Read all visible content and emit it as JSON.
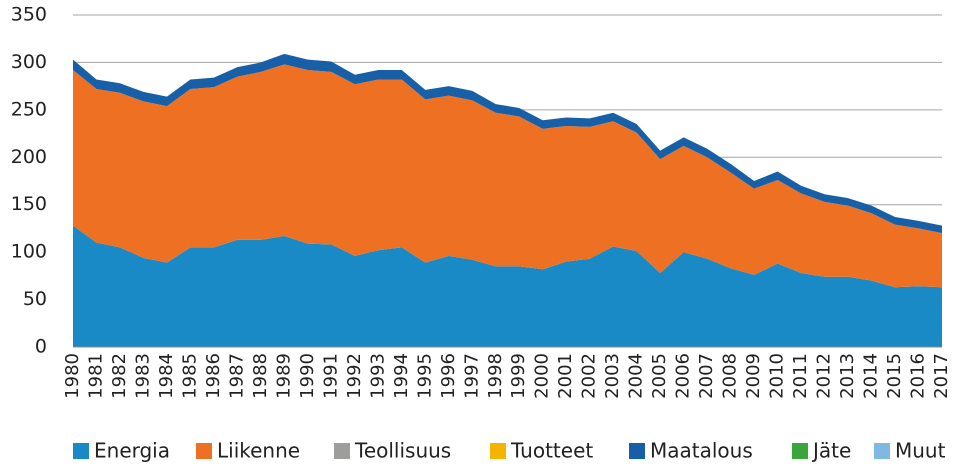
{
  "chart_data": {
    "type": "area",
    "categories": [
      "1980",
      "1981",
      "1982",
      "1983",
      "1984",
      "1985",
      "1986",
      "1987",
      "1988",
      "1989",
      "1990",
      "1991",
      "1992",
      "1993",
      "1994",
      "1995",
      "1996",
      "1997",
      "1998",
      "1999",
      "2000",
      "2001",
      "2002",
      "2003",
      "2004",
      "2005",
      "2006",
      "2007",
      "2008",
      "2009",
      "2010",
      "2011",
      "2012",
      "2013",
      "2014",
      "2015",
      "2016",
      "2017"
    ],
    "stacked": true,
    "series": [
      {
        "name": "Energia",
        "color": "#1a8ac6",
        "values": [
          128,
          110,
          105,
          94,
          89,
          105,
          105,
          113,
          113,
          117,
          109,
          108,
          96,
          102,
          105,
          89,
          96,
          92,
          85,
          85,
          82,
          90,
          93,
          106,
          101,
          78,
          100,
          93,
          83,
          76,
          88,
          78,
          74,
          74,
          70,
          63,
          64,
          63
        ]
      },
      {
        "name": "Liikenne",
        "color": "#ee7023",
        "values": [
          164,
          162,
          163,
          165,
          165,
          167,
          169,
          172,
          177,
          181,
          183,
          182,
          181,
          180,
          177,
          172,
          169,
          168,
          162,
          158,
          148,
          143,
          139,
          132,
          125,
          120,
          112,
          107,
          101,
          91,
          88,
          84,
          79,
          75,
          71,
          66,
          61,
          57
        ]
      },
      {
        "name": "Teollisuus",
        "color": "#9d9d9c",
        "values": [
          0,
          0,
          0,
          0,
          0,
          0,
          0,
          0,
          0,
          0,
          0,
          0,
          0,
          0,
          0,
          0,
          0,
          0,
          0,
          0,
          0,
          0,
          0,
          0,
          0,
          0,
          0,
          0,
          0,
          0,
          0,
          0,
          0,
          0,
          0,
          0,
          0,
          0
        ]
      },
      {
        "name": "Tuotteet",
        "color": "#f4b400",
        "values": [
          0,
          0,
          0,
          0,
          0,
          0,
          0,
          0,
          0,
          0,
          0,
          0,
          0,
          0,
          0,
          0,
          0,
          0,
          0,
          0,
          0,
          0,
          0,
          0,
          0,
          0,
          0,
          0,
          0,
          0,
          0,
          0,
          0,
          0,
          0,
          0,
          0,
          0
        ]
      },
      {
        "name": "Maatalous",
        "color": "#1760a8",
        "values": [
          11,
          10,
          10,
          10,
          10,
          10,
          10,
          10,
          10,
          11,
          11,
          11,
          10,
          10,
          10,
          10,
          10,
          10,
          9,
          9,
          9,
          9,
          9,
          9,
          9,
          9,
          9,
          9,
          9,
          8,
          9,
          8,
          8,
          8,
          8,
          8,
          8,
          8
        ]
      },
      {
        "name": "Jäte",
        "color": "#3aa53a",
        "values": [
          0,
          0,
          0,
          0,
          0,
          0,
          0,
          0,
          0,
          0,
          0,
          0,
          0,
          0,
          0,
          0,
          0,
          0,
          0,
          0,
          0,
          0,
          0,
          0,
          0,
          0,
          0,
          0,
          0,
          0,
          0,
          0,
          0,
          0,
          0,
          0,
          0,
          0
        ]
      },
      {
        "name": "Muut",
        "color": "#7fb8e0",
        "values": [
          0,
          0,
          0,
          0,
          0,
          0,
          0,
          0,
          0,
          0,
          0,
          0,
          0,
          0,
          0,
          0,
          0,
          0,
          0,
          0,
          0,
          0,
          0,
          0,
          0,
          0,
          0,
          0,
          0,
          0,
          0,
          0,
          0,
          0,
          0,
          0,
          0,
          0
        ]
      }
    ],
    "ylim": [
      0,
      350
    ],
    "yticks": [
      0,
      50,
      100,
      150,
      200,
      250,
      300,
      350
    ],
    "grid": true,
    "legend": "bottom"
  }
}
